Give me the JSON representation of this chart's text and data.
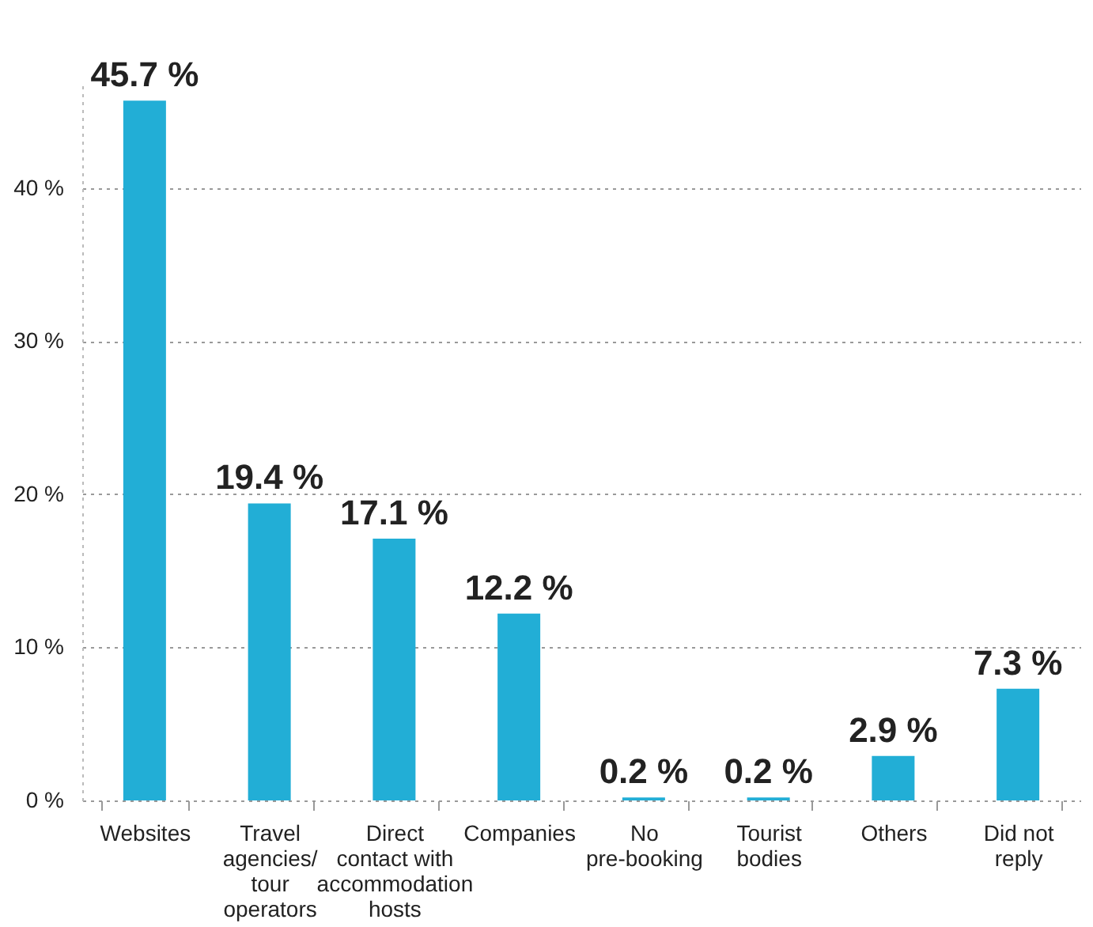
{
  "chart_data": {
    "type": "bar",
    "categories": [
      "Websites",
      "Travel agencies/ tour operators",
      "Direct contact with accommodation hosts",
      "Companies",
      "No pre-booking",
      "Tourist bodies",
      "Others",
      "Did not reply"
    ],
    "values": [
      45.7,
      19.4,
      17.1,
      12.2,
      0.2,
      0.2,
      2.9,
      7.3
    ],
    "value_labels": [
      "45.7 %",
      "19.4 %",
      "17.1 %",
      "12.2 %",
      "0.2 %",
      "0.2 %",
      "2.9 %",
      "7.3 %"
    ],
    "color": "#22aed6",
    "yticks": [
      {
        "value": 0,
        "label": "0 %"
      },
      {
        "value": 10,
        "label": "10 %"
      },
      {
        "value": 20,
        "label": "20 %"
      },
      {
        "value": 30,
        "label": "30 %"
      },
      {
        "value": 40,
        "label": "40 %"
      }
    ],
    "ylim": [
      0,
      47
    ],
    "grid": "y"
  }
}
